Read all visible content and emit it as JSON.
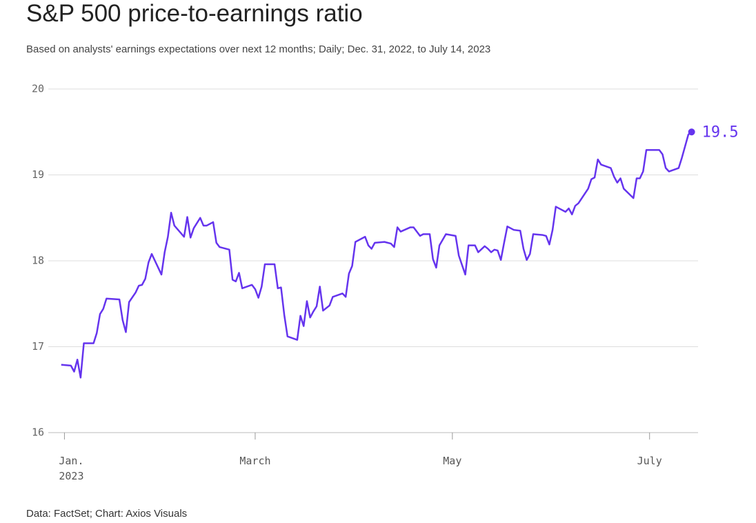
{
  "chart_data": {
    "type": "line",
    "title": "S&P 500 price-to-earnings ratio",
    "subtitle": "Based on analysts' earnings expectations over next 12 months; Daily; Dec. 31, 2022, to July 14, 2023",
    "source": "Data: FactSet; Chart: Axios Visuals",
    "x": [
      "2022-12-31",
      "2023-01-03",
      "2023-01-04",
      "2023-01-05",
      "2023-01-06",
      "2023-01-07",
      "2023-01-10",
      "2023-01-11",
      "2023-01-12",
      "2023-01-13",
      "2023-01-14",
      "2023-01-18",
      "2023-01-19",
      "2023-01-20",
      "2023-01-21",
      "2023-01-23",
      "2023-01-24",
      "2023-01-25",
      "2023-01-26",
      "2023-01-27",
      "2023-01-28",
      "2023-01-31",
      "2023-02-01",
      "2023-02-02",
      "2023-02-03",
      "2023-02-04",
      "2023-02-07",
      "2023-02-08",
      "2023-02-09",
      "2023-02-10",
      "2023-02-12",
      "2023-02-13",
      "2023-02-14",
      "2023-02-16",
      "2023-02-17",
      "2023-02-18",
      "2023-02-21",
      "2023-02-22",
      "2023-02-23",
      "2023-02-24",
      "2023-02-25",
      "2023-02-28",
      "2023-03-01",
      "2023-03-02",
      "2023-03-03",
      "2023-03-04",
      "2023-03-07",
      "2023-03-08",
      "2023-03-09",
      "2023-03-10",
      "2023-03-11",
      "2023-03-14",
      "2023-03-15",
      "2023-03-16",
      "2023-03-17",
      "2023-03-18",
      "2023-03-19",
      "2023-03-20",
      "2023-03-21",
      "2023-03-22",
      "2023-03-24",
      "2023-03-25",
      "2023-03-28",
      "2023-03-29",
      "2023-03-30",
      "2023-03-31",
      "2023-04-01",
      "2023-04-04",
      "2023-04-05",
      "2023-04-06",
      "2023-04-07",
      "2023-04-10",
      "2023-04-12",
      "2023-04-13",
      "2023-04-14",
      "2023-04-15",
      "2023-04-18",
      "2023-04-19",
      "2023-04-21",
      "2023-04-22",
      "2023-04-24",
      "2023-04-25",
      "2023-04-26",
      "2023-04-27",
      "2023-04-29",
      "2023-05-02",
      "2023-05-03",
      "2023-05-05",
      "2023-05-06",
      "2023-05-08",
      "2023-05-09",
      "2023-05-11",
      "2023-05-12",
      "2023-05-13",
      "2023-05-14",
      "2023-05-15",
      "2023-05-16",
      "2023-05-17",
      "2023-05-18",
      "2023-05-20",
      "2023-05-22",
      "2023-05-23",
      "2023-05-24",
      "2023-05-25",
      "2023-05-26",
      "2023-05-29",
      "2023-05-30",
      "2023-05-31",
      "2023-06-01",
      "2023-06-02",
      "2023-06-05",
      "2023-06-06",
      "2023-06-07",
      "2023-06-08",
      "2023-06-09",
      "2023-06-12",
      "2023-06-13",
      "2023-06-14",
      "2023-06-15",
      "2023-06-16",
      "2023-06-19",
      "2023-06-20",
      "2023-06-21",
      "2023-06-22",
      "2023-06-23",
      "2023-06-26",
      "2023-06-27",
      "2023-06-28",
      "2023-06-29",
      "2023-06-30",
      "2023-07-03",
      "2023-07-04",
      "2023-07-05",
      "2023-07-06",
      "2023-07-07",
      "2023-07-10",
      "2023-07-11",
      "2023-07-13",
      "2023-07-14"
    ],
    "series": [
      {
        "name": "S&P 500 P/E",
        "color": "#6534ee",
        "values": [
          16.79,
          16.78,
          16.71,
          16.85,
          16.64,
          17.04,
          17.04,
          17.16,
          17.38,
          17.44,
          17.56,
          17.55,
          17.31,
          17.17,
          17.52,
          17.63,
          17.71,
          17.72,
          17.79,
          17.98,
          18.08,
          17.84,
          18.1,
          18.28,
          18.56,
          18.41,
          18.28,
          18.51,
          18.27,
          18.38,
          18.5,
          18.41,
          18.41,
          18.45,
          18.21,
          18.16,
          18.13,
          17.78,
          17.76,
          17.86,
          17.68,
          17.72,
          17.67,
          17.57,
          17.7,
          17.96,
          17.96,
          17.68,
          17.69,
          17.37,
          17.12,
          17.08,
          17.36,
          17.24,
          17.53,
          17.34,
          17.41,
          17.47,
          17.7,
          17.42,
          17.48,
          17.58,
          17.62,
          17.58,
          17.85,
          17.94,
          18.22,
          18.28,
          18.18,
          18.14,
          18.21,
          18.22,
          18.2,
          18.16,
          18.39,
          18.34,
          18.39,
          18.39,
          18.29,
          18.31,
          18.31,
          18.02,
          17.92,
          18.18,
          18.31,
          18.29,
          18.06,
          17.84,
          18.18,
          18.18,
          18.1,
          18.17,
          18.14,
          18.1,
          18.13,
          18.12,
          18.01,
          18.21,
          18.4,
          18.36,
          18.35,
          18.14,
          18.01,
          18.08,
          18.31,
          18.3,
          18.29,
          18.19,
          18.36,
          18.63,
          18.57,
          18.61,
          18.54,
          18.64,
          18.67,
          18.84,
          18.95,
          18.97,
          19.18,
          19.12,
          19.08,
          18.98,
          18.91,
          18.96,
          18.84,
          18.73,
          18.96,
          18.96,
          19.04,
          19.29,
          19.29,
          19.29,
          19.24,
          19.08,
          19.04,
          19.08,
          19.2,
          19.47,
          19.5
        ]
      }
    ],
    "xlim": [
      "2022-12-27",
      "2023-07-16"
    ],
    "xticks": [
      {
        "value": "2023-01-01",
        "label": "Jan.\n2023"
      },
      {
        "value": "2023-03-01",
        "label": "March"
      },
      {
        "value": "2023-05-01",
        "label": "May"
      },
      {
        "value": "2023-07-01",
        "label": "July"
      }
    ],
    "ylim": [
      16,
      20
    ],
    "yticks": [
      16,
      17,
      18,
      19,
      20
    ],
    "grid": true
  }
}
